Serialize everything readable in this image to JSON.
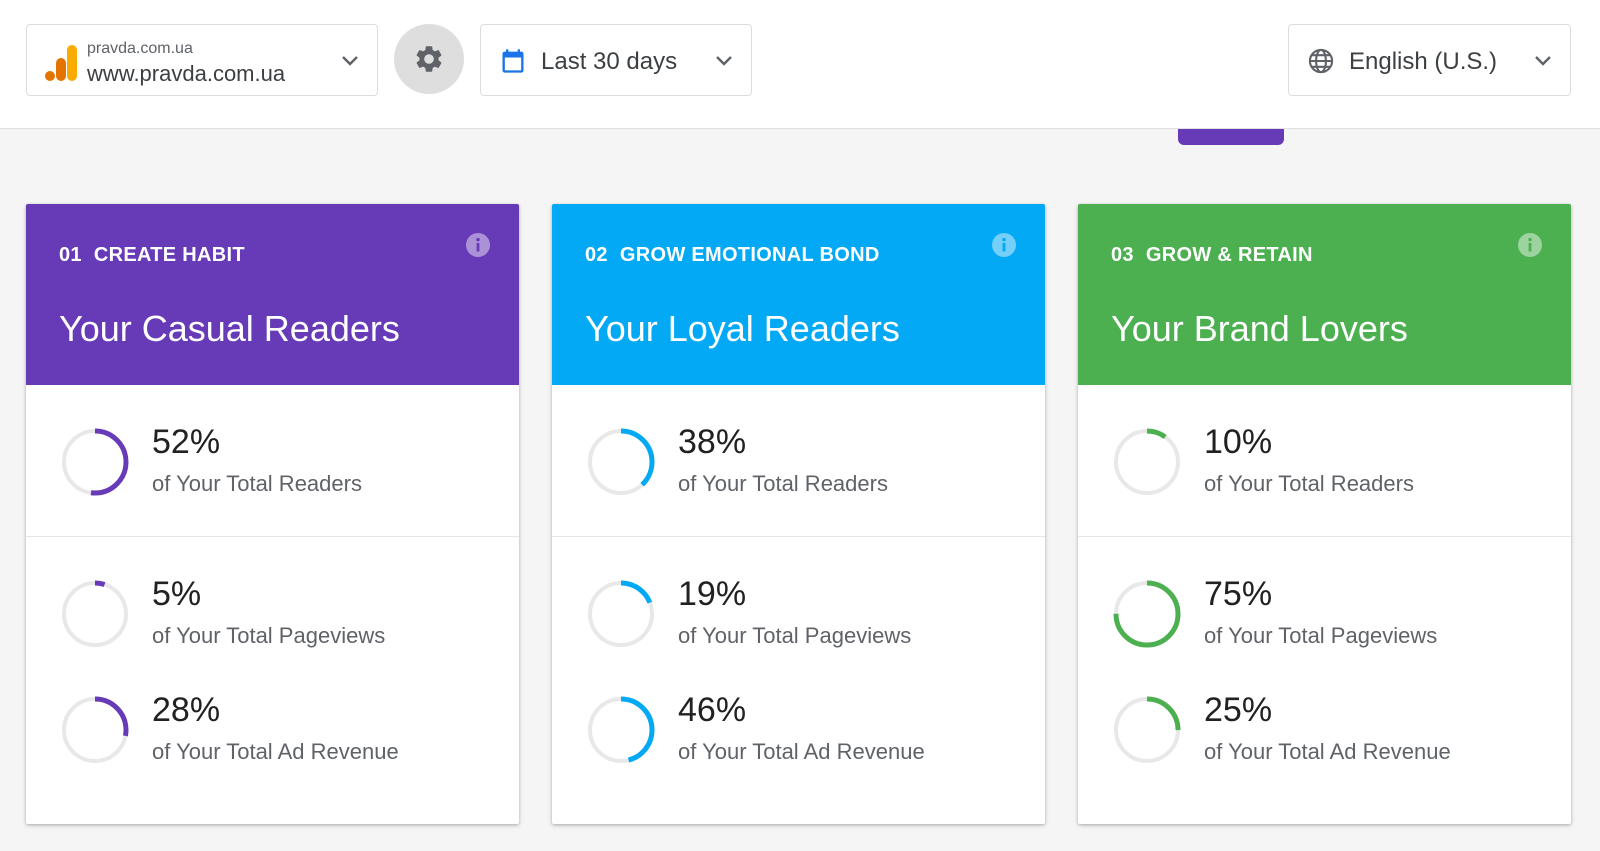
{
  "header": {
    "property": {
      "domain_small": "pravda.com.ua",
      "domain_main": "www.pravda.com.ua"
    },
    "date_range": {
      "label": "Last 30 days"
    },
    "language": {
      "label": "English (U.S.)"
    }
  },
  "colors": {
    "casual": "#673ab7",
    "loyal": "#03a9f4",
    "lovers": "#4caf50",
    "track": "#e8e8e8"
  },
  "cards": [
    {
      "number": "01",
      "stage": "CREATE HABIT",
      "title": "Your Casual Readers",
      "color": "#673ab7",
      "metrics": [
        {
          "value": "52%",
          "pct": 52,
          "label": "of Your Total Readers"
        },
        {
          "value": "5%",
          "pct": 5,
          "label": "of Your Total Pageviews"
        },
        {
          "value": "28%",
          "pct": 28,
          "label": "of Your Total Ad Revenue"
        }
      ]
    },
    {
      "number": "02",
      "stage": "GROW EMOTIONAL BOND",
      "title": "Your Loyal Readers",
      "color": "#03a9f4",
      "metrics": [
        {
          "value": "38%",
          "pct": 38,
          "label": "of Your Total Readers"
        },
        {
          "value": "19%",
          "pct": 19,
          "label": "of Your Total Pageviews"
        },
        {
          "value": "46%",
          "pct": 46,
          "label": "of Your Total Ad Revenue"
        }
      ]
    },
    {
      "number": "03",
      "stage": "GROW & RETAIN",
      "title": "Your Brand Lovers",
      "color": "#4caf50",
      "metrics": [
        {
          "value": "10%",
          "pct": 10,
          "label": "of Your Total Readers"
        },
        {
          "value": "75%",
          "pct": 75,
          "label": "of Your Total Pageviews"
        },
        {
          "value": "25%",
          "pct": 25,
          "label": "of Your Total Ad Revenue"
        }
      ]
    }
  ]
}
